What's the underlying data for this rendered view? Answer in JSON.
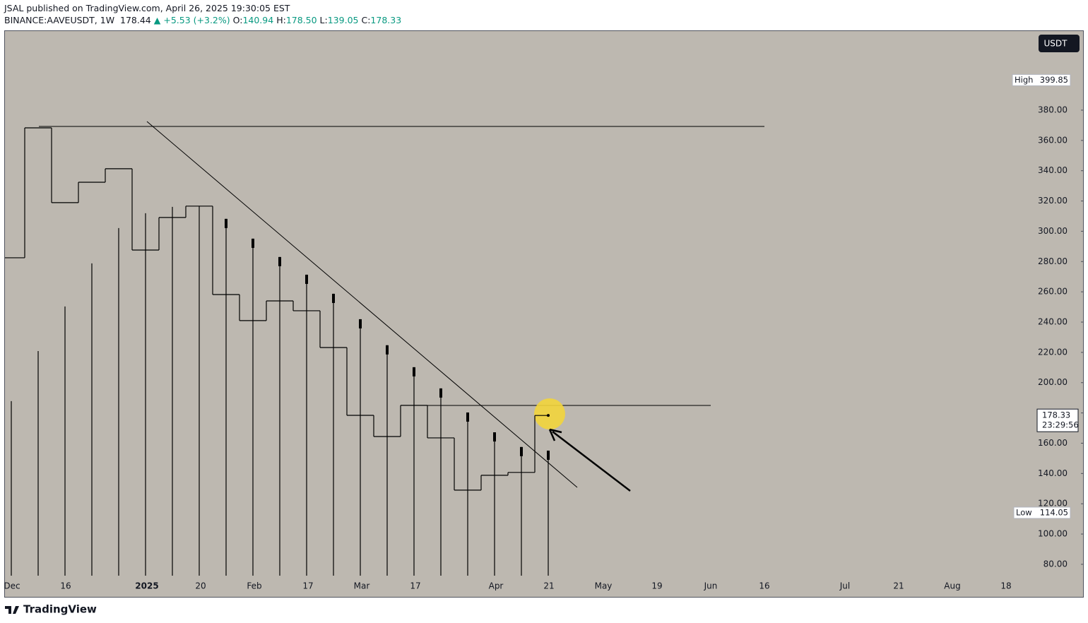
{
  "header": {
    "published": "JSAL published on TradingView.com, April 26, 2025 19:30:05 EST",
    "symbol": "BINANCE:AAVEUSDT, 1W",
    "last": "178.44",
    "arrow": "▲",
    "change": "+5.53 (+3.2%)",
    "o_label": "O:",
    "o": "140.94",
    "h_label": "H:",
    "h": "178.50",
    "l_label": "L:",
    "l": "139.05",
    "c_label": "C:",
    "c": "178.33"
  },
  "chart_data": {
    "type": "step",
    "currency": "USDT",
    "ylim": [
      58.5,
      432.7
    ],
    "yticks": [
      {
        "value": 80,
        "label": "80.00"
      },
      {
        "value": 100,
        "label": "100.00"
      },
      {
        "value": 120,
        "label": "120.00"
      },
      {
        "value": 140,
        "label": "140.00"
      },
      {
        "value": 160,
        "label": "160.00"
      },
      {
        "value": 180,
        "label": "180.00"
      },
      {
        "value": 200,
        "label": "200.00"
      },
      {
        "value": 220,
        "label": "220.00"
      },
      {
        "value": 240,
        "label": "240.00"
      },
      {
        "value": 260,
        "label": "260.00"
      },
      {
        "value": 280,
        "label": "280.00"
      },
      {
        "value": 300,
        "label": "300.00"
      },
      {
        "value": 320,
        "label": "320.00"
      },
      {
        "value": 340,
        "label": "340.00"
      },
      {
        "value": 360,
        "label": "360.00"
      },
      {
        "value": 380,
        "label": "380.00"
      }
    ],
    "xticks": [
      "Dec",
      "16",
      "2025",
      "20",
      "Feb",
      "17",
      "Mar",
      "17",
      "Apr",
      "21",
      "May",
      "19",
      "Jun",
      "16",
      "Jul",
      "21",
      "Aug",
      "18"
    ],
    "series": [
      {
        "color": "#000000",
        "values": [
          282.5,
          368.3,
          318.9,
          332.4,
          341.3,
          287.6,
          309.1,
          316.6,
          258.2,
          241.0,
          254.0,
          247.5,
          223.2,
          178.4,
          164.4,
          185.0,
          163.5,
          129.0,
          138.8,
          140.7,
          178.33
        ]
      },
      {
        "color": "#000000",
        "values": [
          187.8,
          220.9,
          250.3,
          278.8,
          302.1,
          311.9,
          316.1,
          316.6,
          308.2,
          295.1,
          283.0,
          271.3,
          258.7,
          241.9,
          224.7,
          210.2,
          196.2,
          180.3,
          167.2,
          157.5,
          155.1
        ]
      }
    ],
    "high": {
      "label": "High",
      "value": 399.85,
      "value_label": "399.85"
    },
    "low": {
      "label": "Low",
      "value": 114.05,
      "value_label": "114.05"
    },
    "price_tag": {
      "value": 178.33,
      "value_label": "178.33",
      "countdown": "23:29:56"
    }
  },
  "footer": {
    "brand": "TradingView"
  }
}
